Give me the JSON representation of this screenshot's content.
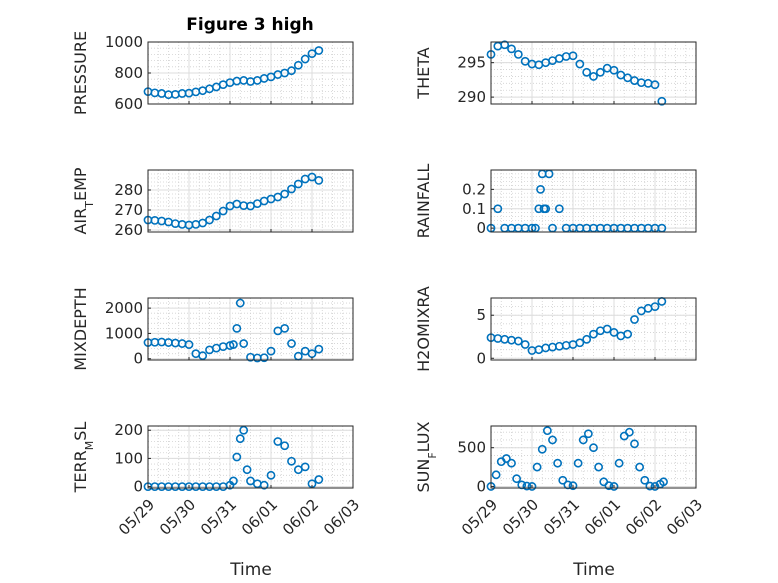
{
  "figure": {
    "title": "Figure 3 high",
    "xlabel": "Time",
    "date_ticks": [
      "05/29",
      "05/30",
      "05/31",
      "06/01",
      "06/02",
      "06/03"
    ],
    "marker_color": "#0072BD",
    "grid": true,
    "minor_grid": true
  },
  "chart_data": [
    {
      "id": "pressure",
      "type": "scatter",
      "ylabel": "PRESSURE",
      "ylim": [
        600,
        1000
      ],
      "yticks": [
        "600",
        "800",
        "1000"
      ],
      "x": [
        "05/29 00:00",
        "05/29 04:00",
        "05/29 08:00",
        "05/29 12:00",
        "05/29 16:00",
        "05/29 20:00",
        "05/30 00:00",
        "05/30 04:00",
        "05/30 08:00",
        "05/30 12:00",
        "05/30 16:00",
        "05/30 20:00",
        "05/31 00:00",
        "05/31 04:00",
        "05/31 08:00",
        "05/31 12:00",
        "05/31 16:00",
        "05/31 20:00",
        "06/01 00:00",
        "06/01 04:00",
        "06/01 08:00",
        "06/01 12:00",
        "06/01 16:00",
        "06/01 20:00",
        "06/02 00:00",
        "06/02 04:00"
      ],
      "y": [
        680,
        672,
        668,
        660,
        662,
        668,
        670,
        678,
        686,
        698,
        710,
        725,
        738,
        748,
        752,
        745,
        752,
        765,
        775,
        790,
        800,
        815,
        850,
        890,
        925,
        945
      ]
    },
    {
      "id": "theta",
      "type": "scatter",
      "ylabel": "THETA",
      "ylim": [
        289,
        298
      ],
      "yticks": [
        "290",
        "295"
      ],
      "x": [
        "05/29 00:00",
        "05/29 04:00",
        "05/29 08:00",
        "05/29 12:00",
        "05/29 16:00",
        "05/29 20:00",
        "05/30 00:00",
        "05/30 04:00",
        "05/30 08:00",
        "05/30 12:00",
        "05/30 16:00",
        "05/30 20:00",
        "05/31 00:00",
        "05/31 04:00",
        "05/31 08:00",
        "05/31 12:00",
        "05/31 16:00",
        "05/31 20:00",
        "06/01 00:00",
        "06/01 04:00",
        "06/01 08:00",
        "06/01 12:00",
        "06/01 16:00",
        "06/01 20:00",
        "06/02 00:00",
        "06/02 04:00"
      ],
      "y": [
        296.2,
        297.4,
        297.6,
        297.0,
        296.2,
        295.2,
        294.8,
        294.7,
        295.0,
        295.3,
        295.6,
        295.9,
        296.0,
        294.8,
        293.6,
        293.0,
        293.6,
        294.2,
        293.9,
        293.2,
        292.8,
        292.4,
        292.1,
        292.0,
        291.8,
        289.4
      ]
    },
    {
      "id": "air_temp",
      "type": "scatter",
      "ylabel": "AIR_TEMP",
      "ylim": [
        259,
        290
      ],
      "yticks": [
        "260",
        "270",
        "280"
      ],
      "x": [
        "05/29 00:00",
        "05/29 04:00",
        "05/29 08:00",
        "05/29 12:00",
        "05/29 16:00",
        "05/29 20:00",
        "05/30 00:00",
        "05/30 04:00",
        "05/30 08:00",
        "05/30 12:00",
        "05/30 16:00",
        "05/30 20:00",
        "05/31 00:00",
        "05/31 04:00",
        "05/31 08:00",
        "05/31 12:00",
        "05/31 16:00",
        "05/31 20:00",
        "06/01 00:00",
        "06/01 04:00",
        "06/01 08:00",
        "06/01 12:00",
        "06/01 16:00",
        "06/01 20:00",
        "06/02 00:00",
        "06/02 04:00"
      ],
      "y": [
        265.0,
        264.8,
        264.5,
        264.0,
        263.2,
        262.8,
        262.5,
        262.8,
        263.5,
        265.0,
        267.0,
        269.5,
        272.0,
        273.0,
        272.2,
        272.0,
        273.2,
        274.5,
        275.5,
        276.5,
        278.0,
        280.5,
        283.0,
        285.5,
        286.5,
        284.8
      ]
    },
    {
      "id": "rainfall",
      "type": "scatter",
      "ylabel": "RAINFALL",
      "ylim": [
        -0.02,
        0.3
      ],
      "yticks": [
        "0",
        "0.1",
        "0.2"
      ],
      "x": [
        "05/29 00:00",
        "05/29 04:00",
        "05/29 08:00",
        "05/29 12:00",
        "05/29 16:00",
        "05/29 20:00",
        "05/30 00:00",
        "05/30 02:00",
        "05/30 04:00",
        "05/30 05:00",
        "05/30 06:00",
        "05/30 07:00",
        "05/30 08:00",
        "05/30 10:00",
        "05/30 12:00",
        "05/30 16:00",
        "05/30 20:00",
        "05/31 00:00",
        "05/31 04:00",
        "05/31 08:00",
        "05/31 12:00",
        "05/31 16:00",
        "05/31 20:00",
        "06/01 00:00",
        "06/01 04:00",
        "06/01 08:00",
        "06/01 12:00",
        "06/01 16:00",
        "06/01 20:00",
        "06/02 00:00",
        "06/02 04:00"
      ],
      "y": [
        0,
        0.1,
        0,
        0,
        0,
        0,
        0,
        0,
        0.1,
        0.2,
        0.28,
        0.1,
        0.1,
        0.28,
        0,
        0.1,
        0,
        0,
        0,
        0,
        0,
        0,
        0,
        0,
        0,
        0,
        0,
        0,
        0,
        0,
        0
      ]
    },
    {
      "id": "mixdepth",
      "type": "scatter",
      "ylabel": "MIXDEPTH",
      "ylim": [
        -50,
        2400
      ],
      "yticks": [
        "0",
        "1000",
        "2000"
      ],
      "x": [
        "05/29 00:00",
        "05/29 04:00",
        "05/29 08:00",
        "05/29 12:00",
        "05/29 16:00",
        "05/29 20:00",
        "05/30 00:00",
        "05/30 04:00",
        "05/30 08:00",
        "05/30 12:00",
        "05/30 16:00",
        "05/30 20:00",
        "05/31 00:00",
        "05/31 02:00",
        "05/31 04:00",
        "05/31 06:00",
        "05/31 08:00",
        "05/31 12:00",
        "05/31 16:00",
        "05/31 20:00",
        "06/01 00:00",
        "06/01 04:00",
        "06/01 08:00",
        "06/01 12:00",
        "06/01 16:00",
        "06/01 20:00",
        "06/02 00:00",
        "06/02 04:00"
      ],
      "y": [
        640,
        650,
        660,
        640,
        620,
        600,
        560,
        200,
        120,
        350,
        420,
        480,
        520,
        560,
        1200,
        2200,
        600,
        60,
        30,
        40,
        300,
        1100,
        1200,
        600,
        100,
        300,
        200,
        380
      ]
    },
    {
      "id": "h2omixra",
      "type": "scatter",
      "ylabel": "H2OMIXRA",
      "ylim": [
        -0.2,
        7
      ],
      "yticks": [
        "0",
        "5"
      ],
      "x": [
        "05/29 00:00",
        "05/29 04:00",
        "05/29 08:00",
        "05/29 12:00",
        "05/29 16:00",
        "05/29 20:00",
        "05/30 00:00",
        "05/30 04:00",
        "05/30 08:00",
        "05/30 12:00",
        "05/30 16:00",
        "05/30 20:00",
        "05/31 00:00",
        "05/31 04:00",
        "05/31 08:00",
        "05/31 12:00",
        "05/31 16:00",
        "05/31 20:00",
        "06/01 00:00",
        "06/01 04:00",
        "06/01 08:00",
        "06/01 12:00",
        "06/01 16:00",
        "06/01 20:00",
        "06/02 00:00",
        "06/02 04:00"
      ],
      "y": [
        2.4,
        2.3,
        2.2,
        2.1,
        2.0,
        1.6,
        0.9,
        1.0,
        1.2,
        1.3,
        1.4,
        1.5,
        1.6,
        1.8,
        2.2,
        2.8,
        3.2,
        3.4,
        3.0,
        2.6,
        2.8,
        4.5,
        5.5,
        5.8,
        6.0,
        6.6
      ]
    },
    {
      "id": "terr_msl",
      "type": "scatter",
      "ylabel": "TERR_MSL",
      "ylim": [
        -5,
        215
      ],
      "yticks": [
        "0",
        "100",
        "200"
      ],
      "x": [
        "05/29 00:00",
        "05/29 04:00",
        "05/29 08:00",
        "05/29 12:00",
        "05/29 16:00",
        "05/29 20:00",
        "05/30 00:00",
        "05/30 04:00",
        "05/30 08:00",
        "05/30 12:00",
        "05/30 16:00",
        "05/30 20:00",
        "05/31 00:00",
        "05/31 02:00",
        "05/31 04:00",
        "05/31 06:00",
        "05/31 08:00",
        "05/31 10:00",
        "05/31 12:00",
        "05/31 16:00",
        "05/31 20:00",
        "06/01 00:00",
        "06/01 04:00",
        "06/01 08:00",
        "06/01 12:00",
        "06/01 16:00",
        "06/01 20:00",
        "06/02 00:00",
        "06/02 04:00"
      ],
      "y": [
        0,
        0,
        0,
        0,
        0,
        0,
        0,
        0,
        0,
        0,
        0,
        0,
        5,
        20,
        105,
        170,
        200,
        60,
        20,
        10,
        5,
        40,
        160,
        145,
        90,
        60,
        70,
        10,
        25
      ]
    },
    {
      "id": "sun_flux",
      "type": "scatter",
      "ylabel": "SUN_FLUX",
      "ylim": [
        -20,
        780
      ],
      "yticks": [
        "0",
        "500"
      ],
      "x": [
        "05/29 00:00",
        "05/29 03:00",
        "05/29 06:00",
        "05/29 09:00",
        "05/29 12:00",
        "05/29 15:00",
        "05/29 18:00",
        "05/29 21:00",
        "05/30 00:00",
        "05/30 03:00",
        "05/30 06:00",
        "05/30 09:00",
        "05/30 12:00",
        "05/30 15:00",
        "05/30 18:00",
        "05/30 21:00",
        "05/31 00:00",
        "05/31 03:00",
        "05/31 06:00",
        "05/31 09:00",
        "05/31 12:00",
        "05/31 15:00",
        "05/31 18:00",
        "05/31 21:00",
        "06/01 00:00",
        "06/01 03:00",
        "06/01 06:00",
        "06/01 09:00",
        "06/01 12:00",
        "06/01 15:00",
        "06/01 18:00",
        "06/01 21:00",
        "06/02 00:00",
        "06/02 03:00",
        "06/02 05:00"
      ],
      "y": [
        0,
        150,
        320,
        360,
        300,
        100,
        20,
        5,
        0,
        250,
        480,
        720,
        600,
        300,
        80,
        20,
        10,
        300,
        600,
        680,
        500,
        250,
        60,
        10,
        0,
        300,
        650,
        700,
        550,
        250,
        80,
        5,
        0,
        30,
        60
      ]
    }
  ]
}
